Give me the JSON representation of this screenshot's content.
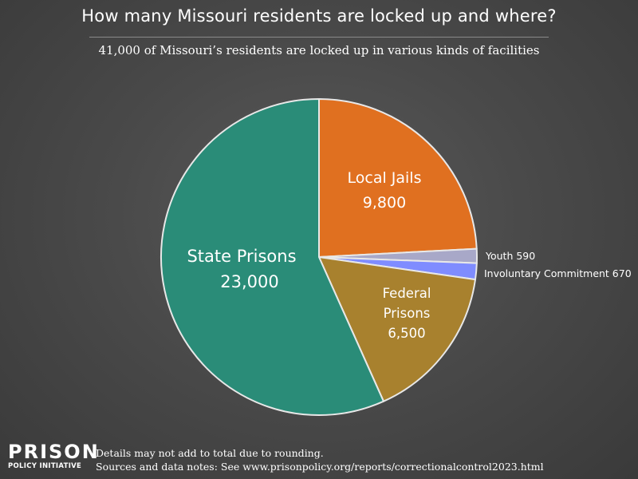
{
  "title": "How many Missouri residents are locked up and where?",
  "subtitle": "41,000 of Missouri’s residents are locked up in various kinds of facilities",
  "logo": {
    "line1": "PRISON",
    "line2": "POLICY INITIATIVE"
  },
  "notes": {
    "line1": "Details may not add to total due to rounding.",
    "line2": "Sources and data notes: See www.prisonpolicy.org/reports/correctionalcontrol2023.html"
  },
  "chart_data": {
    "type": "pie",
    "title": "How many Missouri residents are locked up and where?",
    "subtitle": "41,000 of Missouri’s residents are locked up in various kinds of facilities",
    "start_angle_deg": 0,
    "direction": "clockwise",
    "slices": [
      {
        "name": "Local Jails",
        "label_lines": [
          "Local Jails",
          "9,800"
        ],
        "value": 9800,
        "color": "#e07020",
        "label_style": "inside"
      },
      {
        "name": "Youth",
        "label_lines": [
          "Youth 590"
        ],
        "value": 590,
        "color": "#a8a8c8",
        "label_style": "outside"
      },
      {
        "name": "Involuntary Commitment",
        "label_lines": [
          "Involuntary Commitment 670"
        ],
        "value": 670,
        "color": "#7f8cff",
        "label_style": "outside"
      },
      {
        "name": "Federal Prisons",
        "label_lines": [
          "Federal",
          "Prisons",
          "6,500"
        ],
        "value": 6500,
        "color": "#a8812e",
        "label_style": "inside"
      },
      {
        "name": "State Prisons",
        "label_lines": [
          "State Prisons",
          "23,000"
        ],
        "value": 23000,
        "color": "#2a8c78",
        "label_style": "inside"
      }
    ],
    "colors": {
      "background": "#4a4a4a",
      "slice_border": "#e8e8e8"
    }
  }
}
